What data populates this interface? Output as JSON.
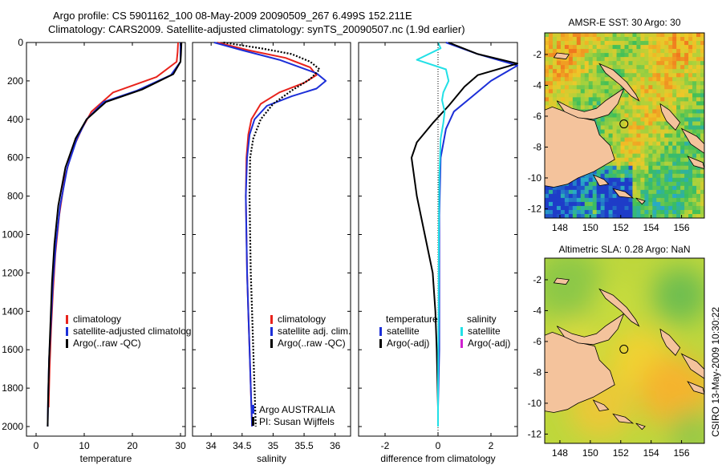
{
  "header": {
    "line1": "Argo profile: CS 5901162_100 08-May-2009 20090509_267 6.499S 152.211E",
    "line2": "Climatology: CARS2009. Satellite-adjusted climatology: synTS_20090507.nc (1.9d earlier)"
  },
  "side_stamp": "CSIRO 13-May-2009 10:30:22",
  "colors": {
    "climatology": "#e8231c",
    "satellite": "#1c2fd8",
    "argo": "#000000",
    "satellite_diff": "#22e0e6",
    "argo_adj_sal": "#d020d0",
    "land": "#f4c39c"
  },
  "chart_data": [
    {
      "type": "line",
      "name": "temperature-profile",
      "xlabel": "temperature",
      "ylabel": "",
      "xlim": [
        -2,
        31
      ],
      "ylim": [
        0,
        2050
      ],
      "y_inverted": true,
      "xticks": [
        0,
        10,
        20,
        30
      ],
      "yticks": [
        0,
        200,
        400,
        600,
        800,
        1000,
        1200,
        1400,
        1600,
        1800,
        2000
      ],
      "legend": {
        "placement": "lower-right",
        "entries": [
          "climatology",
          "satellite-adjusted climatolog",
          "Argo(..raw -QC)"
        ]
      },
      "series": [
        {
          "name": "climatology",
          "color": "#e8231c",
          "points": [
            [
              29.5,
              0
            ],
            [
              29.4,
              50
            ],
            [
              29.2,
              100
            ],
            [
              25,
              180
            ],
            [
              16,
              260
            ],
            [
              11.5,
              360
            ],
            [
              9.5,
              450
            ],
            [
              7.5,
              560
            ],
            [
              6,
              700
            ],
            [
              4.8,
              900
            ],
            [
              4,
              1100
            ],
            [
              3.5,
              1300
            ],
            [
              3.1,
              1500
            ],
            [
              2.8,
              1700
            ],
            [
              2.6,
              1900
            ]
          ]
        },
        {
          "name": "satellite-adjusted climatolog",
          "color": "#1c2fd8",
          "points": [
            [
              30,
              0
            ],
            [
              30,
              50
            ],
            [
              30,
              100
            ],
            [
              28,
              170
            ],
            [
              21,
              250
            ],
            [
              14,
              310
            ],
            [
              10.5,
              400
            ],
            [
              8.5,
              500
            ],
            [
              6.5,
              650
            ],
            [
              5,
              850
            ],
            [
              4.1,
              1050
            ],
            [
              3.5,
              1250
            ],
            [
              3.1,
              1450
            ],
            [
              2.7,
              1650
            ],
            [
              2.5,
              1850
            ],
            [
              2.4,
              2000
            ]
          ]
        },
        {
          "name": "Argo(..raw -QC)",
          "color": "#000000",
          "points": [
            [
              30.2,
              0
            ],
            [
              30.1,
              60
            ],
            [
              30,
              100
            ],
            [
              28.5,
              165
            ],
            [
              22,
              245
            ],
            [
              14.5,
              310
            ],
            [
              10.5,
              400
            ],
            [
              8.2,
              500
            ],
            [
              6.1,
              650
            ],
            [
              4.6,
              850
            ],
            [
              3.8,
              1050
            ],
            [
              3.3,
              1250
            ],
            [
              3,
              1450
            ],
            [
              2.7,
              1650
            ],
            [
              2.5,
              1850
            ],
            [
              2.4,
              2000
            ]
          ]
        }
      ]
    },
    {
      "type": "line",
      "name": "salinity-profile",
      "xlabel": "salinity",
      "ylabel": "",
      "xlim": [
        33.7,
        36.25
      ],
      "ylim": [
        0,
        2050
      ],
      "y_inverted": true,
      "xticks": [
        34,
        34.5,
        35,
        35.5,
        36
      ],
      "legend": {
        "placement": "lower-right",
        "entries": [
          "climatology",
          "satellite adj. clim.",
          "Argo(..raw -QC)"
        ]
      },
      "annotations": [
        "Argo AUSTRALIA",
        "PI: Susan Wijffels"
      ],
      "series": [
        {
          "name": "climatology",
          "color": "#e8231c",
          "points": [
            [
              34.1,
              0
            ],
            [
              34.6,
              40
            ],
            [
              35.2,
              80
            ],
            [
              35.6,
              130
            ],
            [
              35.7,
              170
            ],
            [
              35.5,
              210
            ],
            [
              35.1,
              260
            ],
            [
              34.8,
              320
            ],
            [
              34.65,
              400
            ],
            [
              34.6,
              480
            ],
            [
              34.57,
              600
            ],
            [
              34.56,
              800
            ],
            [
              34.57,
              1000
            ],
            [
              34.58,
              1200
            ],
            [
              34.6,
              1400
            ],
            [
              34.62,
              1600
            ],
            [
              34.64,
              1800
            ],
            [
              34.66,
              2000
            ]
          ]
        },
        {
          "name": "satellite adj. clim.",
          "color": "#1c2fd8",
          "points": [
            [
              34.05,
              0
            ],
            [
              34.5,
              40
            ],
            [
              35.1,
              90
            ],
            [
              35.7,
              160
            ],
            [
              35.85,
              200
            ],
            [
              35.7,
              240
            ],
            [
              35.3,
              280
            ],
            [
              34.9,
              330
            ],
            [
              34.7,
              400
            ],
            [
              34.62,
              480
            ],
            [
              34.58,
              600
            ],
            [
              34.56,
              800
            ],
            [
              34.57,
              1000
            ],
            [
              34.58,
              1200
            ],
            [
              34.6,
              1400
            ],
            [
              34.62,
              1600
            ],
            [
              34.64,
              1800
            ],
            [
              34.66,
              2000
            ]
          ]
        },
        {
          "name": "Argo(..raw -QC)",
          "color": "#000000",
          "points": [
            [
              34.2,
              0
            ],
            [
              34.8,
              30
            ],
            [
              35.3,
              60
            ],
            [
              35.6,
              100
            ],
            [
              35.75,
              140
            ],
            [
              35.6,
              190
            ],
            [
              35.3,
              250
            ],
            [
              35,
              320
            ],
            [
              34.8,
              400
            ],
            [
              34.68,
              500
            ],
            [
              34.63,
              600
            ],
            [
              34.62,
              800
            ],
            [
              34.63,
              1000
            ],
            [
              34.64,
              1200
            ],
            [
              34.66,
              1400
            ],
            [
              34.68,
              1600
            ],
            [
              34.7,
              1800
            ],
            [
              34.72,
              2000
            ]
          ]
        }
      ]
    },
    {
      "type": "line",
      "name": "difference-from-climatology",
      "xlabel": "difference from climatology",
      "ylabel": "",
      "xlim": [
        -3,
        3
      ],
      "ylim": [
        0,
        2050
      ],
      "y_inverted": true,
      "xticks": [
        -2,
        0,
        2
      ],
      "legend": {
        "placement": "lower-center",
        "headers": [
          "temperature",
          "salinity"
        ],
        "entries": [
          "satellite",
          "Argo(-adj)",
          "satellite",
          "Argo(-adj)"
        ]
      },
      "series": [
        {
          "name": "temperature satellite",
          "color": "#1c2fd8",
          "points": [
            [
              0.3,
              0
            ],
            [
              1.5,
              60
            ],
            [
              3,
              120
            ],
            [
              2,
              200
            ],
            [
              1.3,
              280
            ],
            [
              0.6,
              360
            ],
            [
              0.3,
              450
            ],
            [
              0.1,
              600
            ],
            [
              0.05,
              900
            ],
            [
              0.05,
              1300
            ],
            [
              0.05,
              1600
            ],
            [
              0.0,
              1900
            ]
          ]
        },
        {
          "name": "temperature Argo(-adj)",
          "color": "#000000",
          "points": [
            [
              0.4,
              0
            ],
            [
              1.5,
              60
            ],
            [
              3,
              110
            ],
            [
              1.5,
              170
            ],
            [
              1,
              230
            ],
            [
              0.4,
              330
            ],
            [
              -0.2,
              420
            ],
            [
              -0.8,
              520
            ],
            [
              -1,
              600
            ],
            [
              -0.8,
              800
            ],
            [
              -0.5,
              1000
            ],
            [
              -0.2,
              1200
            ],
            [
              -0.1,
              1400
            ],
            [
              -0.05,
              1600
            ],
            [
              0,
              1900
            ]
          ]
        },
        {
          "name": "salinity satellite",
          "color": "#22e0e6",
          "points": [
            [
              0,
              0
            ],
            [
              0.1,
              30
            ],
            [
              -0.8,
              90
            ],
            [
              0.3,
              140
            ],
            [
              0.4,
              200
            ],
            [
              0.2,
              260
            ],
            [
              0.15,
              300
            ],
            [
              0.25,
              360
            ],
            [
              0.2,
              420
            ],
            [
              0.1,
              500
            ],
            [
              0.05,
              700
            ],
            [
              0.03,
              1000
            ],
            [
              0.02,
              1400
            ],
            [
              0.0,
              1800
            ],
            [
              0.0,
              2000
            ]
          ]
        }
      ]
    },
    {
      "type": "heatmap",
      "name": "amsre-sst-map",
      "title": "AMSR-E SST: 30 Argo: 30",
      "xlim": [
        147,
        157.5
      ],
      "ylim": [
        -12.6,
        -0.6
      ],
      "xticks": [
        148,
        150,
        152,
        154,
        156
      ],
      "yticks": [
        -2,
        -4,
        -6,
        -8,
        -10,
        -12
      ],
      "marker": {
        "lon": 152.211,
        "lat": -6.499
      }
    },
    {
      "type": "heatmap",
      "name": "altimetric-sla-map",
      "title": "Altimetric SLA: 0.28 Argo: NaN",
      "xlim": [
        147,
        157.5
      ],
      "ylim": [
        -12.6,
        -0.6
      ],
      "xticks": [
        148,
        150,
        152,
        154,
        156
      ],
      "yticks": [
        -2,
        -4,
        -6,
        -8,
        -10,
        -12
      ],
      "marker": {
        "lon": 152.211,
        "lat": -6.499
      }
    }
  ]
}
